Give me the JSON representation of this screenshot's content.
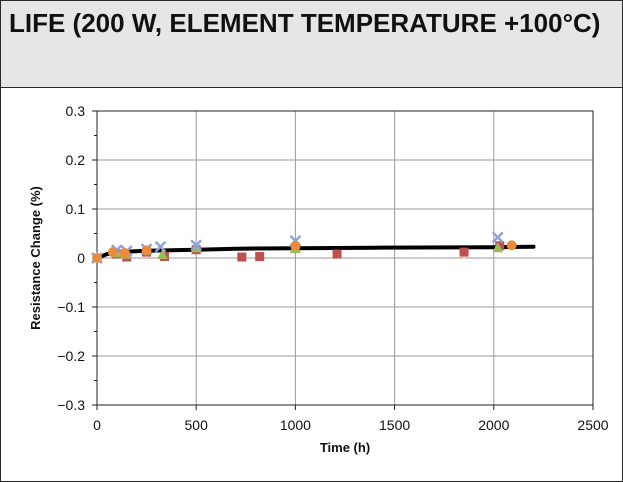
{
  "chart_data": {
    "type": "scatter",
    "title": "LIFE (200 W, ELEMENT TEMPERATURE +100°C)",
    "xlabel": "Time (h)",
    "ylabel": "Resistance Change (%)",
    "xlim": [
      0,
      2500
    ],
    "ylim": [
      -0.3,
      0.3
    ],
    "xticks": [
      "0",
      "500",
      "1000",
      "1500",
      "2000",
      "2500"
    ],
    "yticks": [
      "0.3",
      "0.2",
      "0.1",
      "0",
      "−0.1",
      "−0.2",
      "−0.3"
    ],
    "grid": true,
    "legend": "none",
    "colors": {
      "series_1": "#c0504d",
      "series_2": "#9bbb59",
      "series_3": "#8fa2d6",
      "series_4": "#e98b3a",
      "trend": "#000000"
    },
    "series": [
      {
        "marker": "square",
        "color": "#c0504d",
        "x": [
          0,
          100,
          150,
          250,
          340,
          500,
          730,
          820,
          1000,
          1210,
          1850,
          2030
        ],
        "y": [
          0.0,
          0.008,
          0.002,
          0.012,
          0.003,
          0.017,
          0.002,
          0.003,
          0.02,
          0.008,
          0.012,
          0.025
        ]
      },
      {
        "marker": "triangle",
        "color": "#9bbb59",
        "x": [
          0,
          100,
          150,
          250,
          330,
          500,
          1000,
          2020
        ],
        "y": [
          0.0,
          0.01,
          0.007,
          0.015,
          0.006,
          0.02,
          0.018,
          0.02
        ]
      },
      {
        "marker": "x",
        "color": "#8fa2d6",
        "x": [
          0,
          100,
          150,
          250,
          320,
          500,
          1000,
          2020
        ],
        "y": [
          0.0,
          0.016,
          0.014,
          0.018,
          0.023,
          0.026,
          0.035,
          0.042
        ]
      },
      {
        "marker": "circle",
        "color": "#e98b3a",
        "x": [
          0,
          80,
          140,
          250,
          1000,
          2090
        ],
        "y": [
          0.0,
          0.012,
          0.01,
          0.015,
          0.025,
          0.026
        ]
      }
    ],
    "trend": {
      "x": [
        0,
        50,
        100,
        150,
        250,
        500,
        700,
        1000,
        1400,
        2000,
        2200
      ],
      "y": [
        0.0,
        0.008,
        0.011,
        0.013,
        0.015,
        0.017,
        0.019,
        0.02,
        0.021,
        0.022,
        0.023
      ]
    }
  }
}
